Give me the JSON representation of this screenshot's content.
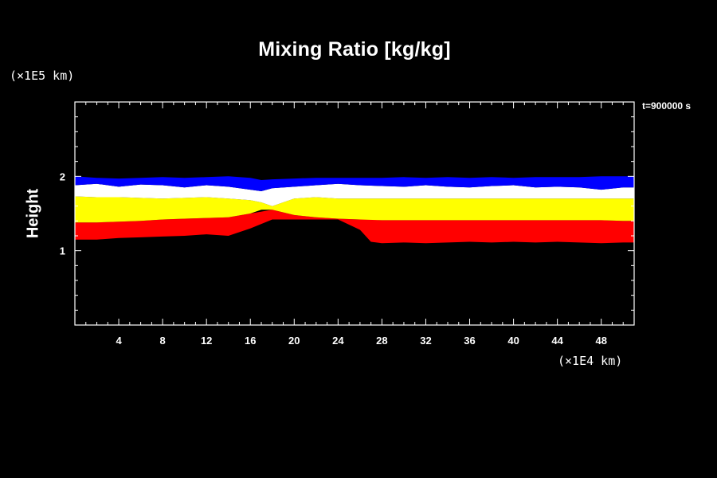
{
  "chart_data": {
    "type": "area",
    "title": "Mixing Ratio [kg/kg]",
    "xlabel": "",
    "ylabel": "Height",
    "x_unit": "(×1E4 km)",
    "y_unit": "(×1E5 km)",
    "time_label": "t=900000 s",
    "xlim": [
      0,
      51
    ],
    "ylim": [
      0,
      3
    ],
    "x_ticks": [
      4,
      8,
      12,
      16,
      20,
      24,
      28,
      32,
      36,
      40,
      44,
      48
    ],
    "y_ticks": [
      1,
      2
    ],
    "grid": false,
    "legend": "none",
    "layers": [
      {
        "color": "#ff0000",
        "x": [
          0,
          2,
          4,
          6,
          8,
          10,
          12,
          14,
          16,
          18,
          20,
          22,
          24,
          26,
          27,
          28,
          30,
          32,
          34,
          36,
          38,
          40,
          42,
          44,
          46,
          48,
          50,
          51
        ],
        "bottom": [
          1.15,
          1.15,
          1.17,
          1.18,
          1.19,
          1.2,
          1.22,
          1.2,
          1.3,
          1.42,
          1.42,
          1.42,
          1.42,
          1.28,
          1.12,
          1.1,
          1.11,
          1.1,
          1.11,
          1.12,
          1.11,
          1.12,
          1.11,
          1.12,
          1.11,
          1.1,
          1.11,
          1.11
        ],
        "top": [
          1.38,
          1.38,
          1.39,
          1.4,
          1.42,
          1.43,
          1.44,
          1.45,
          1.5,
          1.55,
          1.48,
          1.45,
          1.43,
          1.42,
          1.42,
          1.41,
          1.41,
          1.41,
          1.41,
          1.41,
          1.41,
          1.41,
          1.41,
          1.41,
          1.41,
          1.41,
          1.4,
          1.4
        ]
      },
      {
        "color": "#ffff00",
        "x": [
          0,
          2,
          4,
          6,
          8,
          10,
          12,
          14,
          16,
          17,
          18,
          20,
          22,
          24,
          26,
          28,
          30,
          32,
          34,
          36,
          38,
          40,
          42,
          44,
          46,
          48,
          50,
          51
        ],
        "bottom": [
          1.38,
          1.38,
          1.39,
          1.4,
          1.42,
          1.43,
          1.44,
          1.45,
          1.5,
          1.55,
          1.55,
          1.48,
          1.45,
          1.43,
          1.42,
          1.41,
          1.41,
          1.41,
          1.41,
          1.41,
          1.41,
          1.41,
          1.41,
          1.41,
          1.41,
          1.41,
          1.4,
          1.4
        ],
        "top": [
          1.73,
          1.72,
          1.72,
          1.71,
          1.7,
          1.71,
          1.72,
          1.7,
          1.68,
          1.65,
          1.6,
          1.7,
          1.72,
          1.7,
          1.7,
          1.7,
          1.7,
          1.7,
          1.7,
          1.7,
          1.7,
          1.7,
          1.7,
          1.7,
          1.7,
          1.7,
          1.7,
          1.7
        ]
      },
      {
        "color": "#ffffff",
        "x": [
          0,
          2,
          4,
          6,
          8,
          10,
          12,
          14,
          16,
          17,
          18,
          20,
          22,
          24,
          26,
          28,
          30,
          32,
          34,
          36,
          38,
          40,
          42,
          44,
          46,
          48,
          50,
          51
        ],
        "bottom": [
          1.73,
          1.72,
          1.72,
          1.71,
          1.7,
          1.71,
          1.72,
          1.7,
          1.68,
          1.65,
          1.6,
          1.7,
          1.72,
          1.7,
          1.7,
          1.7,
          1.7,
          1.7,
          1.7,
          1.7,
          1.7,
          1.7,
          1.7,
          1.7,
          1.7,
          1.7,
          1.7,
          1.7
        ],
        "top": [
          1.88,
          1.9,
          1.86,
          1.89,
          1.88,
          1.85,
          1.88,
          1.86,
          1.82,
          1.8,
          1.84,
          1.86,
          1.88,
          1.9,
          1.88,
          1.87,
          1.86,
          1.88,
          1.86,
          1.85,
          1.87,
          1.88,
          1.85,
          1.86,
          1.85,
          1.82,
          1.85,
          1.85
        ]
      },
      {
        "color": "#0000ff",
        "x": [
          0,
          2,
          4,
          6,
          8,
          10,
          12,
          14,
          16,
          17,
          18,
          20,
          22,
          24,
          26,
          28,
          30,
          32,
          34,
          36,
          38,
          40,
          42,
          44,
          46,
          48,
          50,
          51
        ],
        "bottom": [
          1.88,
          1.9,
          1.86,
          1.89,
          1.88,
          1.85,
          1.88,
          1.86,
          1.82,
          1.8,
          1.84,
          1.86,
          1.88,
          1.9,
          1.88,
          1.87,
          1.86,
          1.88,
          1.86,
          1.85,
          1.87,
          1.88,
          1.85,
          1.86,
          1.85,
          1.82,
          1.85,
          1.85
        ],
        "top": [
          2.0,
          1.98,
          1.97,
          1.98,
          1.99,
          1.98,
          1.99,
          2.0,
          1.98,
          1.95,
          1.96,
          1.97,
          1.98,
          1.98,
          1.98,
          1.98,
          1.99,
          1.98,
          1.99,
          1.98,
          1.99,
          1.98,
          1.99,
          1.99,
          1.99,
          2.0,
          2.0,
          2.0
        ]
      }
    ]
  }
}
